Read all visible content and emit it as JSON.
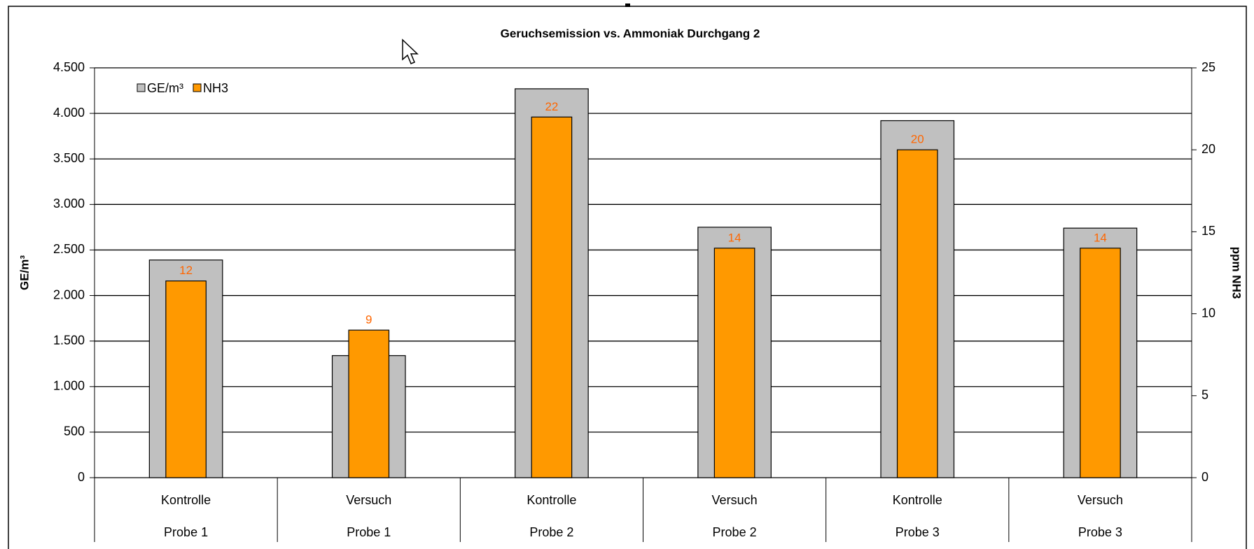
{
  "chart_data": {
    "type": "bar",
    "title": "Geruchsemission vs. Ammoniak Durchgang 2",
    "categories": [
      "Kontrolle",
      "Versuch",
      "Kontrolle",
      "Versuch",
      "Kontrolle",
      "Versuch"
    ],
    "category_groups": [
      "Probe 1",
      "Probe 1",
      "Probe 2",
      "Probe 2",
      "Probe 3",
      "Probe 3"
    ],
    "y_label": "GE/m³",
    "y2_label": "ppm NH3",
    "series": [
      {
        "name": "GE/m³",
        "color": "#c0c0c0",
        "values": [
          2390,
          1340,
          4270,
          2750,
          3920,
          2740
        ]
      },
      {
        "name": "NH3",
        "color": "#ff9900",
        "axis": "y2",
        "values": [
          12,
          9,
          22,
          14,
          20,
          14
        ],
        "label_color": "#ff6600"
      }
    ],
    "ylim": [
      0,
      4500
    ],
    "yticks": [
      0,
      500,
      {
        "value": 1000,
        "label": "1.000"
      },
      {
        "value": 1500,
        "label": "1.500"
      },
      {
        "value": 2000,
        "label": "2.000"
      },
      {
        "value": 2500,
        "label": "2.500"
      },
      {
        "value": 3000,
        "label": "3.000"
      },
      {
        "value": 3500,
        "label": "3.500"
      },
      {
        "value": 4000,
        "label": "4.000"
      },
      {
        "value": 4500,
        "label": "4.500"
      }
    ],
    "y2lim": [
      0,
      25
    ],
    "y2ticks": [
      0,
      5,
      10,
      15,
      20,
      25
    ],
    "grid": true,
    "legend": "top-left"
  }
}
